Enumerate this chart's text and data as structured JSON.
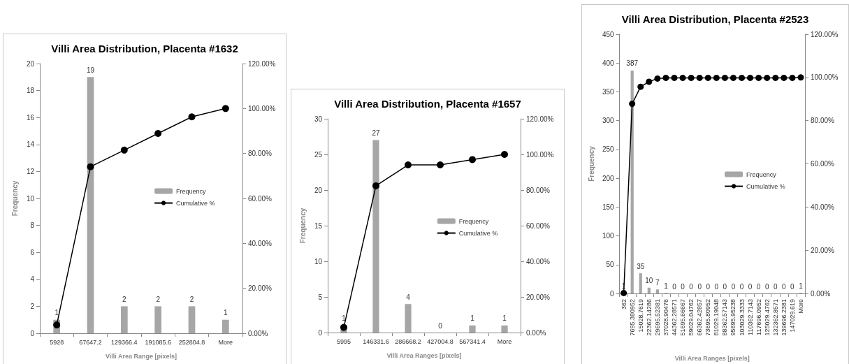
{
  "chart_data": [
    {
      "type": "bar",
      "title": "Villi Area Distribution, Placenta #1632",
      "xlabel": "Villi Area Range [pixels]",
      "ylabel": "Frequency",
      "categories": [
        "5928",
        "67647.2",
        "129366.4",
        "191085.6",
        "252804.8",
        "More"
      ],
      "series": [
        {
          "name": "Frequency",
          "color": "#a6a6a6",
          "values": [
            1,
            19,
            2,
            2,
            2,
            1
          ],
          "value_labels": [
            "1",
            "19",
            "2",
            "2",
            "2",
            "1"
          ]
        },
        {
          "name": "Cumulative %",
          "type": "line",
          "axis": "y2",
          "color": "#000000",
          "values": [
            3.7,
            74.1,
            81.5,
            88.9,
            96.3,
            100
          ]
        }
      ],
      "ylim": [
        0,
        20
      ],
      "yticks": [
        0,
        2,
        4,
        6,
        8,
        10,
        12,
        14,
        16,
        18,
        20
      ],
      "y2lim": [
        0,
        120
      ],
      "y2ticks": [
        {
          "value": 0,
          "label": "0.00%"
        },
        {
          "value": 20,
          "label": "20.00%"
        },
        {
          "value": 40,
          "label": "40.00%"
        },
        {
          "value": 60,
          "label": "60.00%"
        },
        {
          "value": 80,
          "label": "80.00%"
        },
        {
          "value": 100,
          "label": "100.00%"
        },
        {
          "value": 120,
          "label": "120.00%"
        }
      ],
      "marker": "circle",
      "grid": false,
      "legend": "center"
    },
    {
      "type": "bar",
      "title": "Villi Area Distribution, Placenta #1657",
      "xlabel": "Villi Area Ranges [pixels]",
      "ylabel": "Frequency",
      "categories": [
        "5995",
        "146331.6",
        "286668.2",
        "427004.8",
        "567341.4",
        "More"
      ],
      "series": [
        {
          "name": "Frequency",
          "color": "#a6a6a6",
          "values": [
            1,
            27,
            4,
            0,
            1,
            1
          ],
          "value_labels": [
            "1",
            "27",
            "4",
            "0",
            "1",
            "1"
          ]
        },
        {
          "name": "Cumulative %",
          "type": "line",
          "axis": "y2",
          "color": "#000000",
          "values": [
            2.9,
            82.4,
            94.1,
            94.1,
            97.1,
            100
          ]
        }
      ],
      "ylim": [
        0,
        30
      ],
      "yticks": [
        0,
        5,
        10,
        15,
        20,
        25,
        30
      ],
      "y2lim": [
        0,
        120
      ],
      "y2ticks": [
        {
          "value": 0,
          "label": "0.00%"
        },
        {
          "value": 20,
          "label": "20.00%"
        },
        {
          "value": 40,
          "label": "40.00%"
        },
        {
          "value": 60,
          "label": "60.00%"
        },
        {
          "value": 80,
          "label": "80.00%"
        },
        {
          "value": 100,
          "label": "100.00%"
        },
        {
          "value": 120,
          "label": "120.00%"
        }
      ],
      "marker": "circle",
      "grid": false,
      "legend": "center"
    },
    {
      "type": "bar",
      "title": "Villi Area Distribution, Placenta #2523",
      "xlabel": "Villi Area Ranges [pixels]",
      "ylabel": "Frequency",
      "categories": [
        "362",
        "7695.380952",
        "15028.7619",
        "22362.14286",
        "29695.52381",
        "37028.90476",
        "44362.28571",
        "51695.66667",
        "59029.04762",
        "66362.42857",
        "73695.80952",
        "81029.19048",
        "88362.57143",
        "95695.95238",
        "103029.3333",
        "110362.7143",
        "117696.0952",
        "125029.4762",
        "132362.8571",
        "139696.2381",
        "147029.619",
        "More"
      ],
      "series": [
        {
          "name": "Frequency",
          "color": "#a6a6a6",
          "values": [
            1,
            387,
            35,
            10,
            7,
            1,
            0,
            0,
            0,
            0,
            0,
            0,
            0,
            0,
            0,
            0,
            0,
            0,
            0,
            0,
            0,
            1
          ],
          "value_labels": [
            "1",
            "387",
            "35",
            "10",
            "7",
            "1",
            "0",
            "0",
            "0",
            "0",
            "0",
            "0",
            "0",
            "0",
            "0",
            "0",
            "0",
            "0",
            "0",
            "0",
            "0",
            "1"
          ]
        },
        {
          "name": "Cumulative %",
          "type": "line",
          "axis": "y2",
          "color": "#000000",
          "values": [
            0.2,
            87.8,
            95.7,
            98.0,
            99.5,
            99.8,
            99.8,
            99.8,
            99.8,
            99.8,
            99.8,
            99.8,
            99.8,
            99.8,
            99.8,
            99.8,
            99.8,
            99.8,
            99.8,
            99.8,
            99.8,
            100
          ]
        }
      ],
      "ylim": [
        0,
        450
      ],
      "yticks": [
        0,
        50,
        100,
        150,
        200,
        250,
        300,
        350,
        400,
        450
      ],
      "y2lim": [
        0,
        120
      ],
      "y2ticks": [
        {
          "value": 0,
          "label": "0.00%"
        },
        {
          "value": 20,
          "label": "20.00%"
        },
        {
          "value": 40,
          "label": "40.00%"
        },
        {
          "value": 60,
          "label": "60.00%"
        },
        {
          "value": 80,
          "label": "80.00%"
        },
        {
          "value": 100,
          "label": "100.00%"
        },
        {
          "value": 120,
          "label": "120.00%"
        }
      ],
      "marker": "circle",
      "grid": false,
      "legend": "center"
    }
  ]
}
